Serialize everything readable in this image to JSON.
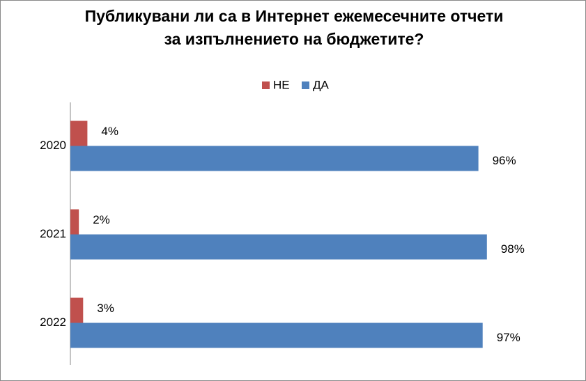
{
  "chart_data": {
    "type": "hbar",
    "title": "Публикувани ли са в Интернет ежемесечните отчети за изпълнението на бюджетите?",
    "categories": [
      "2020",
      "2021",
      "2022"
    ],
    "series": [
      {
        "name": "НЕ",
        "color": "#c0504d",
        "values": [
          4,
          2,
          3
        ],
        "value_labels": [
          "4%",
          "2%",
          "3%"
        ]
      },
      {
        "name": "ДА",
        "color": "#4f81bd",
        "values": [
          96,
          98,
          97
        ],
        "value_labels": [
          "96%",
          "98%",
          "97%"
        ]
      }
    ],
    "legend": "top"
  }
}
